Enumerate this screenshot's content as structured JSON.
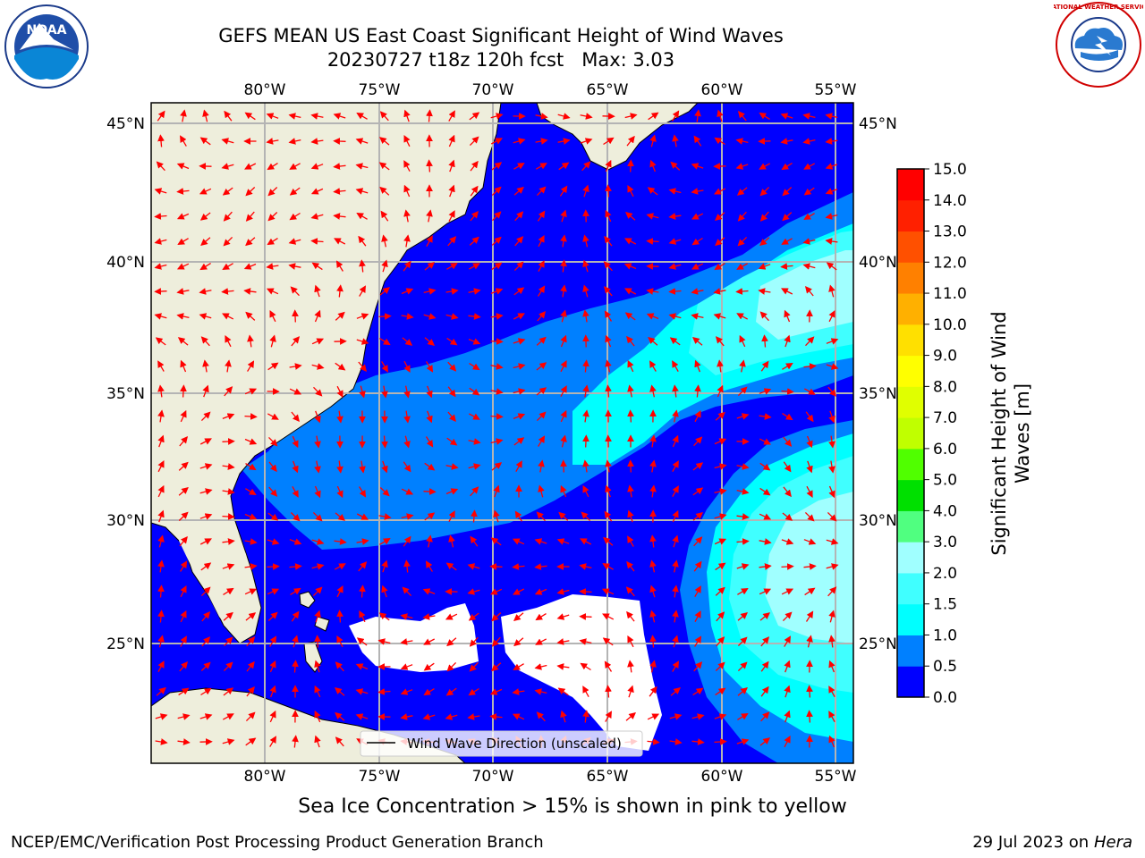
{
  "header": {
    "title": "GEFS MEAN US East Coast Significant Height of Wind Waves",
    "subtitle": "20230727 t18z 120h fcst   Max: 3.03"
  },
  "logos": {
    "noaa_text": "NOAA",
    "nws_text": "NATIONAL WEATHER SERVICE"
  },
  "map": {
    "lon_labels": [
      "80°W",
      "75°W",
      "70°W",
      "65°W",
      "60°W",
      "55°W"
    ],
    "lat_labels": [
      "45°N",
      "40°N",
      "35°N",
      "30°N",
      "25°N"
    ],
    "legend_label": "Wind Wave Direction (unscaled)",
    "colors": {
      "land": "#eeeedc",
      "arrow": "#ff0000",
      "grid": "#b4b4b4"
    }
  },
  "colorbar": {
    "label_line1": "Significant Height of Wind",
    "label_line2": "Waves [m]",
    "ticks": [
      "0.0",
      "0.5",
      "1.0",
      "1.5",
      "2.0",
      "3.0",
      "4.0",
      "5.0",
      "6.0",
      "7.0",
      "8.0",
      "9.0",
      "10.0",
      "11.0",
      "12.0",
      "13.0",
      "14.0",
      "15.0"
    ],
    "colors": [
      "#0000ff",
      "#0080ff",
      "#00ffff",
      "#40ffff",
      "#a0ffff",
      "#50ff80",
      "#00e000",
      "#50ff00",
      "#c0ff00",
      "#e0ff00",
      "#ffff00",
      "#ffe000",
      "#ffb000",
      "#ff8000",
      "#ff5000",
      "#ff2000",
      "#ff0000"
    ]
  },
  "footer": {
    "sea_ice_note": "Sea Ice Concentration > 15% is shown in pink to yellow",
    "org": "NCEP/EMC/Verification Post Processing Product Generation Branch",
    "date": "29 Jul 2023 on",
    "machine": "Hera"
  }
}
